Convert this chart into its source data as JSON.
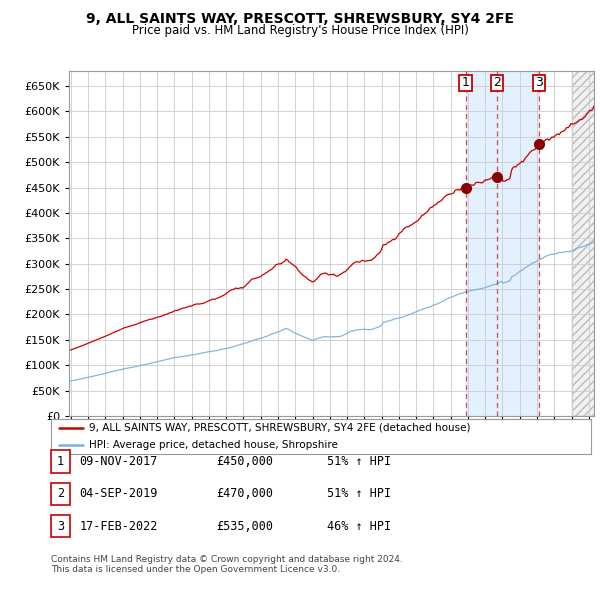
{
  "title": "9, ALL SAINTS WAY, PRESCOTT, SHREWSBURY, SY4 2FE",
  "subtitle": "Price paid vs. HM Land Registry's House Price Index (HPI)",
  "ylim": [
    0,
    680000
  ],
  "yticks": [
    0,
    50000,
    100000,
    150000,
    200000,
    250000,
    300000,
    350000,
    400000,
    450000,
    500000,
    550000,
    600000,
    650000
  ],
  "xlim_start": 1994.9,
  "xlim_end": 2025.3,
  "sale_dates": [
    2017.86,
    2019.67,
    2022.12
  ],
  "sale_prices": [
    450000,
    470000,
    535000
  ],
  "sale_labels": [
    "1",
    "2",
    "3"
  ],
  "vline_color": "#cc0000",
  "sale_marker_color": "#8b0000",
  "hpi_line_color": "#7aaddb",
  "property_line_color": "#cc0000",
  "shaded_between_color": "#ddeeff",
  "shaded_future_color": "#dddddd",
  "legend_entries": [
    "9, ALL SAINTS WAY, PRESCOTT, SHREWSBURY, SY4 2FE (detached house)",
    "HPI: Average price, detached house, Shropshire"
  ],
  "table_rows": [
    [
      "1",
      "09-NOV-2017",
      "£450,000",
      "51% ↑ HPI"
    ],
    [
      "2",
      "04-SEP-2019",
      "£470,000",
      "51% ↑ HPI"
    ],
    [
      "3",
      "17-FEB-2022",
      "£535,000",
      "46% ↑ HPI"
    ]
  ],
  "footnote": "Contains HM Land Registry data © Crown copyright and database right 2024.\nThis data is licensed under the Open Government Licence v3.0.",
  "bg_color": "#ffffff",
  "grid_color": "#cccccc"
}
